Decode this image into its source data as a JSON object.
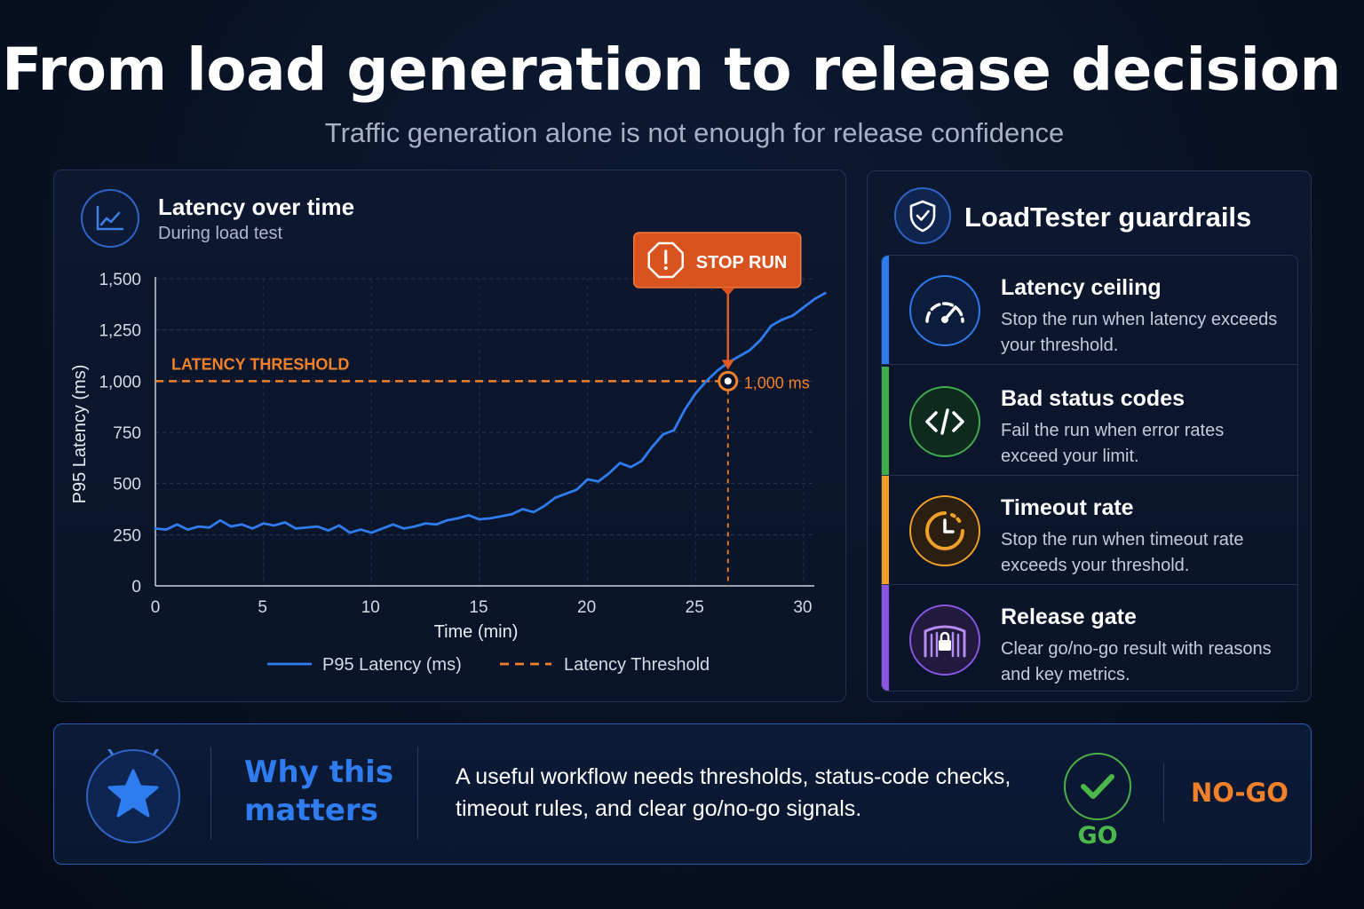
{
  "header": {
    "title": "From load generation to release decision",
    "subtitle": "Traffic generation alone is not enough for release confidence"
  },
  "chart_panel": {
    "title": "Latency over time",
    "subtitle": "During load test",
    "icon": "line-chart-icon"
  },
  "chart_data": {
    "type": "line",
    "title": "Latency over time",
    "subtitle": "During load test",
    "xlabel": "Time (min)",
    "ylabel": "P95 Latency (ms)",
    "xlim": [
      0,
      30
    ],
    "ylim": [
      0,
      1500
    ],
    "x_ticks": [
      "0",
      "5",
      "10",
      "15",
      "20",
      "25",
      "30"
    ],
    "y_ticks": [
      "0",
      "250",
      "500",
      "750",
      "1,000",
      "1,250",
      "1,500"
    ],
    "grid": true,
    "legend_position": "bottom-center",
    "series": [
      {
        "name": "P95 Latency (ms)",
        "color": "#2f7bf0",
        "x": [
          0,
          0.5,
          1,
          1.5,
          2,
          2.5,
          3,
          3.5,
          4,
          4.5,
          5,
          5.5,
          6,
          6.5,
          7,
          7.5,
          8,
          8.5,
          9,
          9.5,
          10,
          10.5,
          11,
          11.5,
          12,
          12.5,
          13,
          13.5,
          14,
          14.5,
          15,
          15.5,
          16,
          16.5,
          17,
          17.5,
          18,
          18.5,
          19,
          19.5,
          20,
          20.5,
          21,
          21.5,
          22,
          22.5,
          23,
          23.5,
          24,
          24.5,
          25,
          25.5,
          26,
          26.5,
          27,
          27.5,
          28,
          28.5,
          29,
          29.5,
          30,
          30.5,
          31
        ],
        "values": [
          280,
          275,
          300,
          275,
          290,
          285,
          320,
          290,
          300,
          280,
          305,
          295,
          310,
          280,
          285,
          290,
          270,
          295,
          260,
          275,
          260,
          280,
          300,
          280,
          290,
          305,
          300,
          320,
          330,
          345,
          325,
          330,
          340,
          350,
          375,
          360,
          390,
          430,
          450,
          470,
          520,
          510,
          550,
          600,
          580,
          610,
          680,
          740,
          760,
          860,
          940,
          1000,
          1050,
          1090,
          1120,
          1150,
          1200,
          1270,
          1300,
          1320,
          1360,
          1400,
          1430
        ]
      },
      {
        "name": "Latency Threshold",
        "color": "#f0812a",
        "style": "dashed",
        "value": 1000
      }
    ],
    "annotations": {
      "threshold_label": "LATENCY THRESHOLD",
      "threshold_value_label": "1,000 ms",
      "stop_label": "STOP RUN",
      "stop_x": 26.5,
      "stop_y": 1000
    }
  },
  "guardrails": {
    "title": "LoadTester guardrails",
    "icon": "shield-check-icon",
    "items": [
      {
        "name": "Latency ceiling",
        "desc": "Stop the run when latency exceeds your threshold.",
        "icon": "speedometer-icon",
        "color": "#2f7bf0"
      },
      {
        "name": "Bad status codes",
        "desc": "Fail the run when error rates exceed your limit.",
        "icon": "code-brackets-icon",
        "color": "#3fae4a"
      },
      {
        "name": "Timeout rate",
        "desc": "Stop the run when timeout rate exceeds your threshold.",
        "icon": "timer-icon",
        "color": "#f0a028"
      },
      {
        "name": "Release gate",
        "desc": "Clear go/no-go result with reasons and key metrics.",
        "icon": "gate-lock-icon",
        "color": "#8a55e0"
      }
    ]
  },
  "bottom": {
    "icon": "star-icon",
    "why_label": "Why this matters",
    "text": "A useful workflow needs thresholds, status-code checks, timeout rules, and clear go/no-go signals.",
    "go_label": "GO",
    "go_icon": "checkmark-icon",
    "nogo_label": "NO-GO"
  }
}
